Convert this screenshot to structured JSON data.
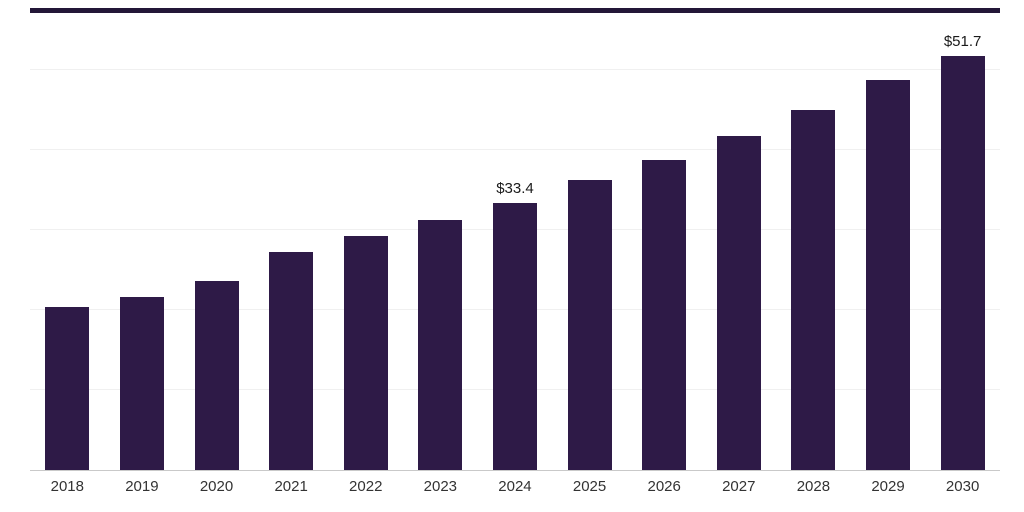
{
  "chart_data": {
    "type": "bar",
    "title": "",
    "xlabel": "",
    "ylabel": "",
    "categories": [
      "2018",
      "2019",
      "2020",
      "2021",
      "2022",
      "2023",
      "2024",
      "2025",
      "2026",
      "2027",
      "2028",
      "2029",
      "2030"
    ],
    "values": [
      20.4,
      21.6,
      23.6,
      27.2,
      29.3,
      31.2,
      33.4,
      36.2,
      38.8,
      41.8,
      45.0,
      48.8,
      51.7
    ],
    "value_labels": [
      "",
      "",
      "",
      "",
      "",
      "",
      "$33.4",
      "",
      "",
      "",
      "",
      "",
      "$51.7"
    ],
    "ylim": [
      0,
      55
    ],
    "gridline_values": [
      10,
      20,
      30,
      40,
      50
    ],
    "grid": true,
    "legend": false,
    "bar_color": "#2e1a47",
    "top_rule_color": "#231738",
    "axis_line_color": "#c9c9c9",
    "grid_color": "#f0f0f0"
  }
}
